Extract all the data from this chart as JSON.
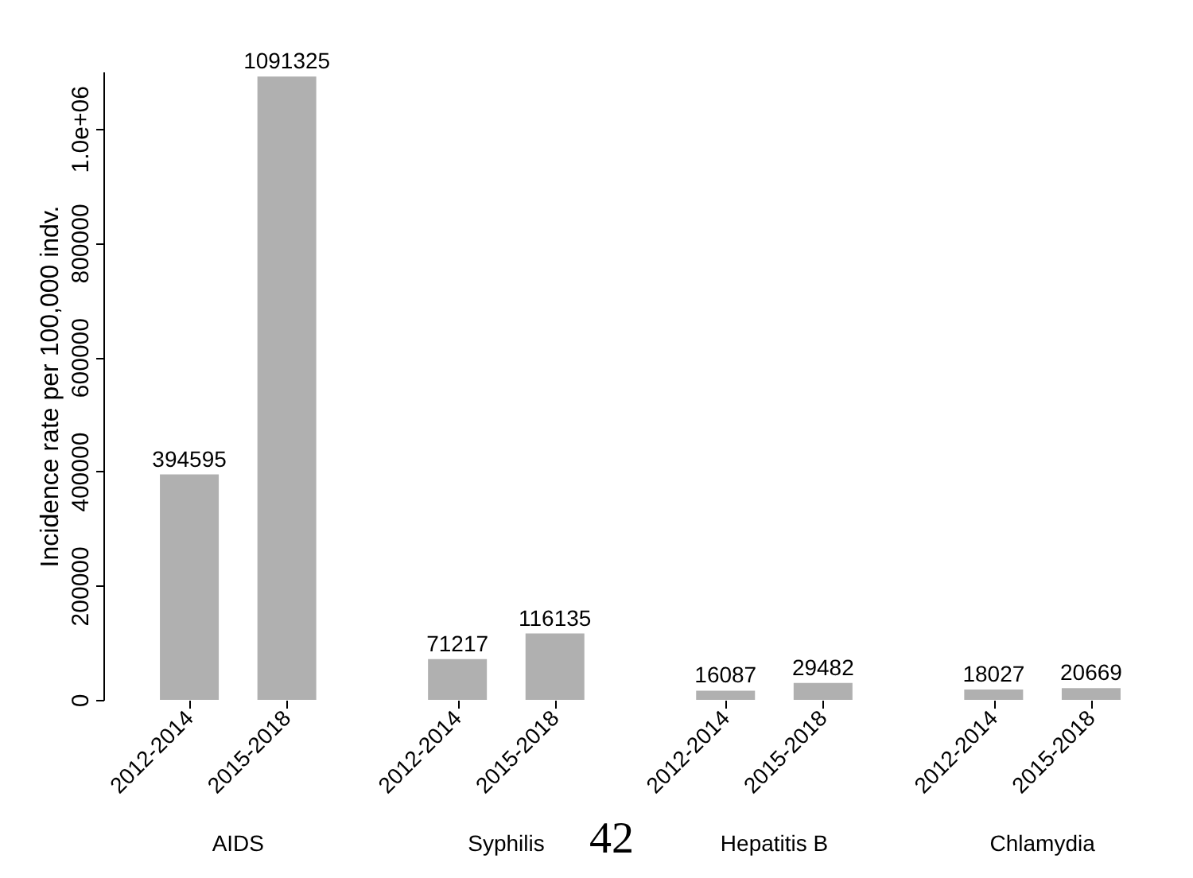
{
  "chart_data": {
    "type": "bar",
    "categories": [
      "2012-2014",
      "2015-2018",
      "2012-2014",
      "2015-2018",
      "2012-2014",
      "2015-2018",
      "2012-2014",
      "2015-2018"
    ],
    "values": [
      394595,
      1091325,
      71217,
      116135,
      16087,
      29482,
      18027,
      20669
    ],
    "color": "#b0b0b0",
    "ylabel": "Incidence rate per 100,000 indv.",
    "ylim": [
      0,
      1100000
    ],
    "yticks": [
      0,
      200000,
      400000,
      600000,
      800000,
      {
        "value": 1000000,
        "label": "1.0e+06"
      }
    ],
    "data_labels": true,
    "grid": false,
    "annotations": [
      "AIDS",
      "Syphilis",
      "Hepatitis B",
      "Chlamydia",
      "42"
    ]
  }
}
